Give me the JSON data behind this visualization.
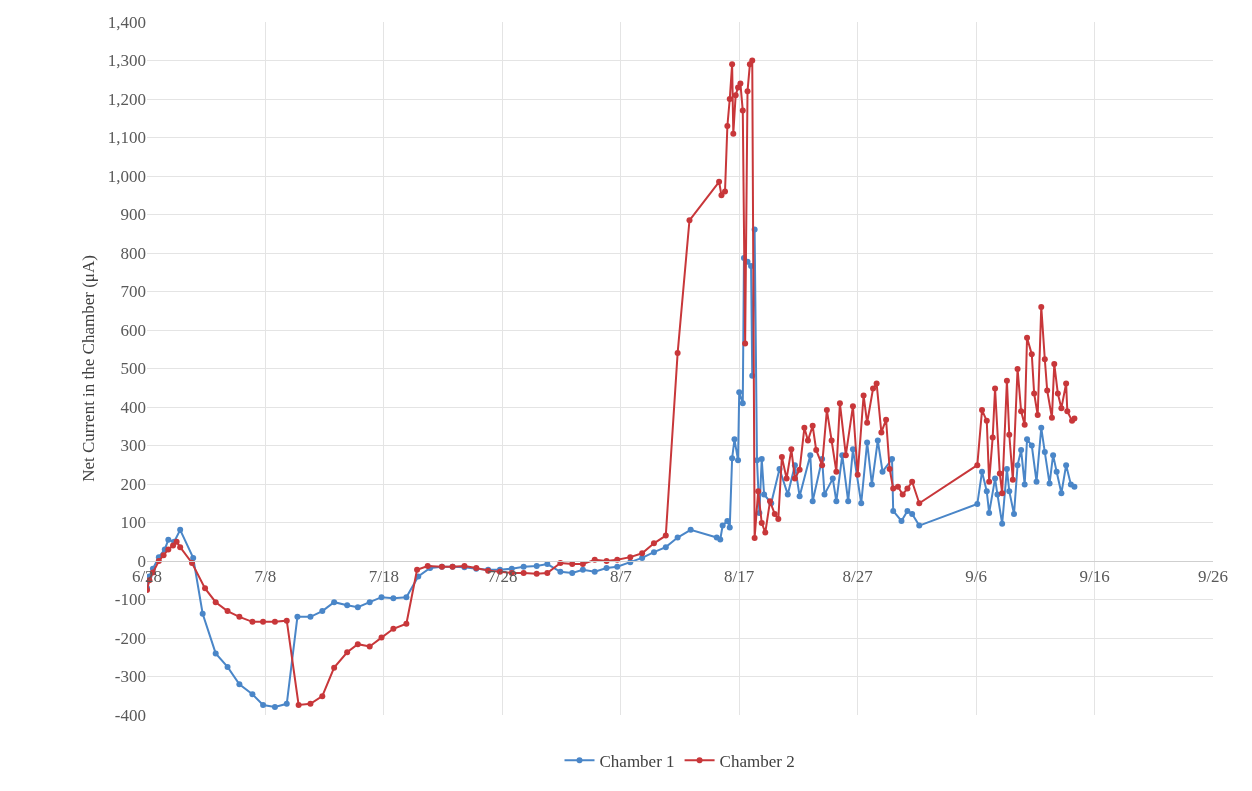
{
  "chart_data": {
    "type": "line",
    "ylabel": "Net Current in the Chamber (μA)",
    "xlim": [
      "--06-28",
      "--09-26"
    ],
    "xticks": [
      {
        "value": "--06-28",
        "label": "6/28"
      },
      {
        "value": "--07-08",
        "label": "7/8"
      },
      {
        "value": "--07-18",
        "label": "7/18"
      },
      {
        "value": "--07-28",
        "label": "7/28"
      },
      {
        "value": "--08-07",
        "label": "8/7"
      },
      {
        "value": "--08-17",
        "label": "8/17"
      },
      {
        "value": "--08-27",
        "label": "8/27"
      },
      {
        "value": "--09-06",
        "label": "9/6"
      },
      {
        "value": "--09-16",
        "label": "9/16"
      },
      {
        "value": "--09-26",
        "label": "9/26"
      }
    ],
    "ylim": [
      -400,
      1400
    ],
    "yticks": [
      -400,
      -300,
      -200,
      -100,
      0,
      100,
      200,
      300,
      400,
      500,
      600,
      700,
      800,
      900,
      {
        "value": 1000,
        "label": "1,000"
      },
      {
        "value": 1100,
        "label": "1,100"
      },
      {
        "value": 1200,
        "label": "1,200"
      },
      {
        "value": 1300,
        "label": "1,300"
      },
      {
        "value": 1400,
        "label": "1,400"
      }
    ],
    "grid": true,
    "legend": "bottom",
    "marker": "circle",
    "line_style": "solid",
    "series": [
      {
        "name": "Chamber 1",
        "color": "#4a86c8",
        "x": [
          "--06-28",
          "--06-28T04:48",
          "--06-28T12:00",
          "--06-29",
          "--06-29T12:00",
          "--06-29T19:12",
          "--06-30T07:12",
          "--06-30T19:12",
          "--07-01T21:36",
          "--07-02T16:48",
          "--07-03T19:12",
          "--07-04T19:12",
          "--07-05T19:12",
          "--07-06T21:36",
          "--07-07T19:12",
          "--07-08T19:12",
          "--07-09T19:12",
          "--07-10T16:48",
          "--07-11T19:12",
          "--07-12T19:12",
          "--07-13T19:12",
          "--07-14T21:36",
          "--07-15T19:12",
          "--07-16T19:12",
          "--07-17T19:12",
          "--07-18T19:12",
          "--07-19T21:36",
          "--07-20T21:36",
          "--07-21T21:36",
          "--07-22T21:36",
          "--07-23T19:12",
          "--07-24T19:12",
          "--07-25T19:12",
          "--07-26T19:12",
          "--07-27T19:12",
          "--07-28T19:12",
          "--07-29T19:12",
          "--07-30T21:36",
          "--07-31T19:12",
          "--08-01T21:36",
          "--08-02T21:36",
          "--08-03T19:12",
          "--08-04T19:12",
          "--08-05T19:12",
          "--08-06T16:48",
          "--08-07T19:12",
          "--08-08T19:12",
          "--08-09T19:12",
          "--08-10T19:12",
          "--08-11T19:12",
          "--08-12T21:36",
          "--08-15T02:24",
          "--08-15T09:36",
          "--08-15T14:24",
          "--08-16",
          "--08-16T04:48",
          "--08-16T09:36",
          "--08-16T14:24",
          "--08-16T21:36",
          "--08-17",
          "--08-17T07:12",
          "--08-17T09:36",
          "--08-17T16:48",
          "--08-18",
          "--08-18T02:24",
          "--08-18T07:12",
          "--08-18T12:00",
          "--08-18T16:48",
          "--08-18T21:36",
          "--08-19T02:24",
          "--08-19T16:48",
          "--08-20T09:36",
          "--08-21T02:24",
          "--08-21T16:48",
          "--08-22T02:24",
          "--08-23",
          "--08-23T04:48",
          "--08-24",
          "--08-24T04:48",
          "--08-24T21:36",
          "--08-25T04:48",
          "--08-25T16:48",
          "--08-26T04:48",
          "--08-26T14:24",
          "--08-27T07:12",
          "--08-27T19:12",
          "--08-28T04:48",
          "--08-28T16:48",
          "--08-29T02:24",
          "--08-29T21:36",
          "--08-30",
          "--08-30T16:48",
          "--08-31T04:48",
          "--08-31T14:24",
          "--09-01T04:48",
          "--09-06T02:24",
          "--09-06T12:00",
          "--09-06T21:36",
          "--09-07T02:24",
          "--09-07T14:24",
          "--09-07T19:12",
          "--09-08T04:48",
          "--09-08T14:24",
          "--09-08T19:12",
          "--09-09T04:48",
          "--09-09T12:00",
          "--09-09T19:12",
          "--09-10T02:24",
          "--09-10T07:12",
          "--09-10T16:48",
          "--09-11T02:24",
          "--09-11T12:00",
          "--09-11T19:12",
          "--09-12T04:48",
          "--09-12T12:00",
          "--09-12T19:12",
          "--09-13T04:48",
          "--09-13T14:24",
          "--09-14",
          "--09-14T07:12"
        ],
        "values": [
          -70,
          -40,
          -20,
          10,
          30,
          55,
          50,
          81,
          8,
          -137,
          -240,
          -275,
          -320,
          -346,
          -374,
          -379,
          -371,
          -145,
          -145,
          -130,
          -107,
          -115,
          -120,
          -107,
          -94,
          -97,
          -94,
          -40,
          -18,
          -15,
          -15,
          -16,
          -20,
          -23,
          -23,
          -20,
          -15,
          -13,
          -8,
          -28,
          -31,
          -23,
          -28,
          -18,
          -15,
          -3,
          8,
          23,
          36,
          61,
          81,
          61,
          56,
          92,
          104,
          87,
          267,
          316,
          262,
          438,
          410,
          787,
          777,
          766,
          481,
          861,
          262,
          125,
          265,
          173,
          150,
          239,
          173,
          249,
          168,
          275,
          155,
          265,
          173,
          214,
          155,
          275,
          155,
          290,
          150,
          308,
          199,
          313,
          232,
          265,
          130,
          104,
          130,
          122,
          92,
          148,
          232,
          181,
          125,
          214,
          173,
          97,
          239,
          181,
          122,
          249,
          288,
          199,
          316,
          300,
          206,
          346,
          283,
          201,
          275,
          232,
          176,
          249,
          199,
          193
        ]
      },
      {
        "name": "Chamber 2",
        "color": "#c8373a",
        "x": [
          "--06-28",
          "--06-28T04:48",
          "--06-28T12:00",
          "--06-29",
          "--06-29T09:36",
          "--06-29T19:12",
          "--06-30T04:48",
          "--06-30T12:00",
          "--06-30T19:12",
          "--07-01T19:12",
          "--07-02T21:36",
          "--07-03T19:12",
          "--07-04T19:12",
          "--07-05T19:12",
          "--07-06T21:36",
          "--07-07T19:12",
          "--07-08T19:12",
          "--07-09T19:12",
          "--07-10T19:12",
          "--07-11T19:12",
          "--07-12T19:12",
          "--07-13T19:12",
          "--07-14T21:36",
          "--07-15T19:12",
          "--07-16T19:12",
          "--07-17T19:12",
          "--07-18T19:12",
          "--07-19T21:36",
          "--07-20T19:12",
          "--07-21T16:48",
          "--07-22T21:36",
          "--07-23T19:12",
          "--07-24T19:12",
          "--07-25T19:12",
          "--07-26T19:12",
          "--07-27T19:12",
          "--07-28T19:12",
          "--07-29T19:12",
          "--07-30T21:36",
          "--07-31T19:12",
          "--08-01T21:36",
          "--08-02T21:36",
          "--08-03T19:12",
          "--08-04T19:12",
          "--08-05T19:12",
          "--08-06T16:48",
          "--08-07T19:12",
          "--08-08T19:12",
          "--08-09T19:12",
          "--08-10T19:12",
          "--08-11T19:12",
          "--08-12T19:12",
          "--08-15T07:12",
          "--08-15T12:00",
          "--08-15T19:12",
          "--08-16",
          "--08-16T04:48",
          "--08-16T09:36",
          "--08-16T12:00",
          "--08-16T16:48",
          "--08-16T21:36",
          "--08-17T02:24",
          "--08-17T07:12",
          "--08-17T12:00",
          "--08-17T16:48",
          "--08-17T21:36",
          "--08-18T02:24",
          "--08-18T07:12",
          "--08-18T14:24",
          "--08-18T21:36",
          "--08-19T04:48",
          "--08-19T14:24",
          "--08-20",
          "--08-20T07:12",
          "--08-20T14:24",
          "--08-21",
          "--08-21T09:36",
          "--08-21T16:48",
          "--08-22T02:24",
          "--08-22T12:00",
          "--08-22T19:12",
          "--08-23T04:48",
          "--08-23T12:00",
          "--08-24",
          "--08-24T09:36",
          "--08-24T19:12",
          "--08-25T04:48",
          "--08-25T12:00",
          "--08-26",
          "--08-26T14:24",
          "--08-27",
          "--08-27T12:00",
          "--08-27T19:12",
          "--08-28T07:12",
          "--08-28T14:24",
          "--08-29",
          "--08-29T09:36",
          "--08-29T16:48",
          "--08-30",
          "--08-30T09:36",
          "--08-30T19:12",
          "--08-31T04:48",
          "--08-31T14:24",
          "--09-01T04:48",
          "--09-06T02:24",
          "--09-06T12:00",
          "--09-06T21:36",
          "--09-07T02:24",
          "--09-07T09:36",
          "--09-07T14:24",
          "--09-08",
          "--09-08T04:48",
          "--09-08T14:24",
          "--09-08T19:12",
          "--09-09T02:24",
          "--09-09T12:00",
          "--09-09T19:12",
          "--09-10T02:24",
          "--09-10T07:12",
          "--09-10T16:48",
          "--09-10T21:36",
          "--09-11T04:48",
          "--09-11T12:00",
          "--09-11T19:12",
          "--09-12",
          "--09-12T09:36",
          "--09-12T14:24",
          "--09-12T21:36",
          "--09-13T04:48",
          "--09-13T14:24",
          "--09-13T16:48",
          "--09-14T02:24",
          "--09-14T07:12"
        ],
        "values": [
          -75,
          -50,
          -30,
          0,
          15,
          30,
          40,
          50,
          36,
          -5,
          -71,
          -107,
          -130,
          -145,
          -158,
          -158,
          -158,
          -155,
          -374,
          -371,
          -351,
          -277,
          -237,
          -216,
          -222,
          -199,
          -176,
          -163,
          -23,
          -13,
          -15,
          -15,
          -13,
          -18,
          -25,
          -28,
          -31,
          -31,
          -33,
          -31,
          -5,
          -8,
          -8,
          3,
          0,
          3,
          10,
          20,
          46,
          66,
          540,
          885,
          985,
          950,
          960,
          1130,
          1200,
          1290,
          1110,
          1210,
          1230,
          1240,
          1170,
          565,
          1220,
          1290,
          1300,
          60,
          181,
          99,
          74,
          155,
          122,
          109,
          270,
          214,
          290,
          214,
          237,
          346,
          313,
          351,
          288,
          249,
          392,
          313,
          232,
          410,
          275,
          402,
          224,
          430,
          359,
          448,
          461,
          334,
          367,
          239,
          188,
          193,
          173,
          188,
          206,
          150,
          249,
          392,
          364,
          206,
          321,
          448,
          227,
          176,
          468,
          328,
          211,
          499,
          389,
          354,
          580,
          537,
          435,
          379,
          660,
          524,
          443,
          372,
          512,
          435,
          397,
          461,
          389,
          364,
          370
        ]
      }
    ]
  }
}
